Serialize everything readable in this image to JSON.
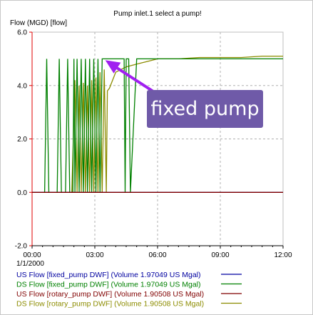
{
  "chart_data": {
    "type": "line",
    "title": "Pump inlet.1 select a pump!",
    "ylabel": "Flow (MGD) [flow]",
    "xlabel": "",
    "date_label": "1/1/2000",
    "x_ticks": [
      "00:00",
      "03:00",
      "06:00",
      "09:00",
      "12:00"
    ],
    "y_ticks": [
      "6.0",
      "4.0",
      "2.0",
      "0.0",
      "-2.0"
    ],
    "xlim": [
      0,
      12
    ],
    "ylim": [
      -2,
      6
    ],
    "grid": true,
    "x_unit": "hours since 00:00",
    "series": [
      {
        "name": "US Flow [fixed_pump DWF]",
        "legend": "US Flow [fixed_pump DWF] (Volume 1.97049 US Mgal)",
        "color": "#0000a0",
        "x": [
          0,
          4.5,
          12
        ],
        "y": [
          0,
          0,
          0
        ]
      },
      {
        "name": "DS Flow [fixed_pump DWF]",
        "legend": "DS Flow [fixed_pump DWF] (Volume 1.97049 US Mgal)",
        "color": "#008000",
        "x": [
          0,
          0.6,
          0.7,
          0.8,
          1.2,
          1.3,
          1.4,
          1.6,
          1.7,
          1.8,
          1.95,
          2.0,
          2.05,
          2.15,
          2.25,
          2.35,
          2.45,
          2.55,
          2.65,
          2.75,
          2.85,
          2.95,
          3.05,
          3.15,
          3.25,
          3.35,
          3.45,
          3.55,
          3.65,
          3.75,
          3.85,
          3.9,
          4.0,
          4.2,
          4.3,
          4.4,
          4.45,
          4.5,
          4.55,
          4.62,
          4.7,
          5.0,
          6.0,
          7.0,
          8.0,
          9.0,
          10.0,
          11.0,
          12.0
        ],
        "y": [
          0,
          0,
          5,
          0,
          0,
          5,
          0,
          0,
          5,
          0,
          0,
          5,
          0,
          5,
          0,
          5,
          0,
          5,
          0,
          5,
          0,
          5,
          0,
          5,
          0,
          5,
          5,
          5,
          5,
          5,
          5,
          5,
          5,
          5,
          5,
          5,
          0,
          5,
          5,
          5,
          0,
          5,
          5,
          5,
          5,
          5,
          5,
          5,
          5
        ]
      },
      {
        "name": "US Flow [rotary_pump DWF]",
        "legend": "US Flow [rotary_pump DWF] (Volume 1.90508 US Mgal)",
        "color": "#800000",
        "x": [
          0,
          4.5,
          12
        ],
        "y": [
          0,
          0,
          0
        ]
      },
      {
        "name": "DS Flow [rotary_pump DWF]",
        "legend": "DS Flow [rotary_pump DWF] (Volume 1.90508 US Mgal)",
        "color": "#8c8c00",
        "x": [
          0,
          1.9,
          2.05,
          2.15,
          2.25,
          2.35,
          2.45,
          2.55,
          2.65,
          2.75,
          2.85,
          2.95,
          3.05,
          3.15,
          3.25,
          3.35,
          3.45,
          3.55,
          3.6,
          3.7,
          4.0,
          4.5,
          5.0,
          5.5,
          6.0,
          7.0,
          8.0,
          9.0,
          10.0,
          11.0,
          12.0
        ],
        "y": [
          0,
          0,
          4.2,
          0,
          4.0,
          0,
          4.1,
          0,
          4.0,
          0,
          4.2,
          0,
          4.3,
          0,
          4.5,
          0,
          4.6,
          0,
          3.8,
          3.9,
          4.5,
          4.7,
          4.8,
          4.9,
          5.0,
          5.0,
          5.05,
          5.05,
          5.05,
          5.1,
          5.1
        ]
      }
    ],
    "annotation": {
      "text": "fixed pump",
      "box_color": "#6f5aa8",
      "arrow_color": "#a020f0",
      "points_to": {
        "x": 3.5,
        "y": 4.95
      }
    }
  }
}
